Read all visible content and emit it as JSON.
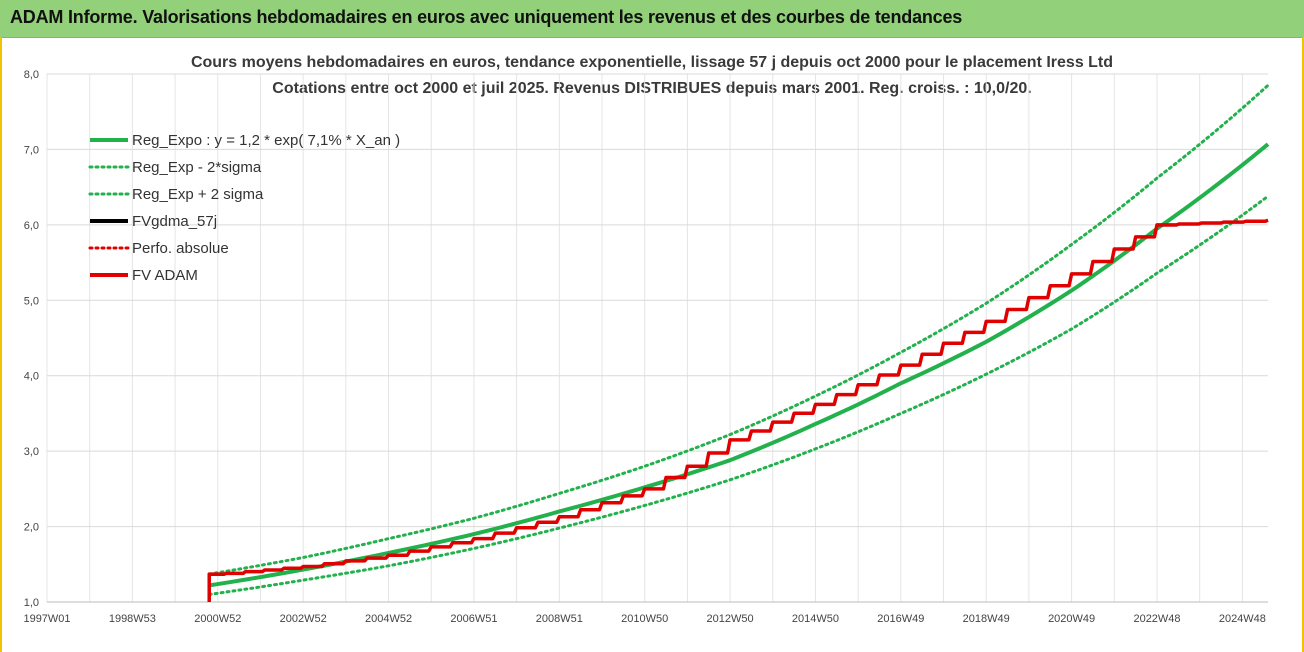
{
  "banner": {
    "title": "ADAM Informe. Valorisations hebdomadaires en euros avec uniquement les revenus et des courbes de tendances"
  },
  "colors": {
    "banner_bg": "#92d07a",
    "trend": "#22b14c",
    "fv_gdma": "#000000",
    "fv_adam": "#e00000",
    "perfo": "#e00000",
    "frame_accent": "#f2c300"
  },
  "chart_data": {
    "type": "line",
    "title": "Cours moyens hebdomadaires en euros, tendance exponentielle, lissage 57 j depuis oct 2000 pour le placement Iress Ltd",
    "subtitle": "Cotations entre oct 2000 et juil 2025. Revenus DISTRIBUES depuis mars 2001. Reg. croiss. : 10,0/20.",
    "xlabel": "",
    "ylabel": "",
    "ylim": [
      1.0,
      8.0
    ],
    "yticks": [
      "1,0",
      "2,0",
      "3,0",
      "4,0",
      "5,0",
      "6,0",
      "7,0",
      "8,0"
    ],
    "xlim": [
      1997.0,
      2025.6
    ],
    "xtick_labels": [
      "1997W01",
      "1998W53",
      "2000W52",
      "2002W52",
      "2004W52",
      "2006W51",
      "2008W51",
      "2010W50",
      "2012W50",
      "2014W50",
      "2016W49",
      "2018W49",
      "2020W49",
      "2022W48",
      "2024W48"
    ],
    "xtick_years": [
      1997.0,
      1999.0,
      2001.0,
      2003.0,
      2005.0,
      2007.0,
      2009.0,
      2011.0,
      2013.0,
      2015.0,
      2017.0,
      2019.0,
      2021.0,
      2023.0,
      2025.0
    ],
    "grid": true,
    "legend_position": "top-left",
    "legend": [
      {
        "label": "Reg_Expo : y = 1,2  * exp( 7,1% *  X_an )",
        "style": "solid",
        "color": "#22b14c"
      },
      {
        "label": "Reg_Exp - 2*sigma",
        "style": "dotted",
        "color": "#22b14c"
      },
      {
        "label": "Reg_Exp + 2 sigma",
        "style": "dotted",
        "color": "#22b14c"
      },
      {
        "label": "FVgdma_57j",
        "style": "solid",
        "color": "#000000"
      },
      {
        "label": "Perfo. absolue",
        "style": "dotted",
        "color": "#e00000"
      },
      {
        "label": "FV ADAM",
        "style": "solid",
        "color": "#e00000"
      }
    ],
    "series": [
      {
        "name": "Reg_Expo : y = 1,2  * exp( 7,1% *  X_an )",
        "x": [
          2000.8,
          2003.0,
          2005.0,
          2007.0,
          2009.0,
          2011.0,
          2013.0,
          2015.0,
          2017.0,
          2019.0,
          2021.0,
          2023.0,
          2025.6
        ],
        "y": [
          1.22,
          1.43,
          1.65,
          1.9,
          2.2,
          2.52,
          2.88,
          3.36,
          3.9,
          4.45,
          5.13,
          5.95,
          7.07
        ]
      },
      {
        "name": "Reg_Exp - 2*sigma",
        "x": [
          2000.8,
          2003.0,
          2005.0,
          2007.0,
          2009.0,
          2011.0,
          2013.0,
          2015.0,
          2017.0,
          2019.0,
          2021.0,
          2023.0,
          2025.6
        ],
        "y": [
          1.1,
          1.29,
          1.48,
          1.71,
          1.98,
          2.28,
          2.62,
          3.03,
          3.5,
          4.02,
          4.62,
          5.36,
          6.38
        ]
      },
      {
        "name": "Reg_Exp + 2 sigma",
        "x": [
          2000.8,
          2003.0,
          2005.0,
          2007.0,
          2009.0,
          2011.0,
          2013.0,
          2015.0,
          2017.0,
          2019.0,
          2021.0,
          2023.0,
          2025.6
        ],
        "y": [
          1.37,
          1.59,
          1.84,
          2.11,
          2.44,
          2.8,
          3.22,
          3.73,
          4.31,
          4.96,
          5.74,
          6.62,
          7.85
        ]
      },
      {
        "name": "FVgdma_57j",
        "x": [
          2000.8,
          2000.8,
          2001.2,
          2003.0,
          2005.0,
          2007.0,
          2009.0,
          2011.0,
          2012.0,
          2013.0,
          2015.0,
          2017.0,
          2019.0,
          2021.0,
          2022.0,
          2023.0,
          2025.6
        ],
        "y": [
          1.05,
          1.36,
          1.38,
          1.47,
          1.62,
          1.84,
          2.13,
          2.5,
          2.8,
          3.15,
          3.62,
          4.14,
          4.72,
          5.35,
          5.68,
          5.99,
          6.06
        ]
      },
      {
        "name": "FV ADAM",
        "x": [
          2000.8,
          2000.8,
          2001.2,
          2003.0,
          2005.0,
          2007.0,
          2009.0,
          2011.0,
          2012.0,
          2013.0,
          2015.0,
          2017.0,
          2019.0,
          2021.0,
          2022.0,
          2023.0,
          2025.6
        ],
        "y": [
          1.0,
          1.37,
          1.38,
          1.47,
          1.62,
          1.84,
          2.13,
          2.5,
          2.8,
          3.15,
          3.62,
          4.14,
          4.72,
          5.35,
          5.68,
          6.0,
          6.06
        ]
      }
    ]
  }
}
